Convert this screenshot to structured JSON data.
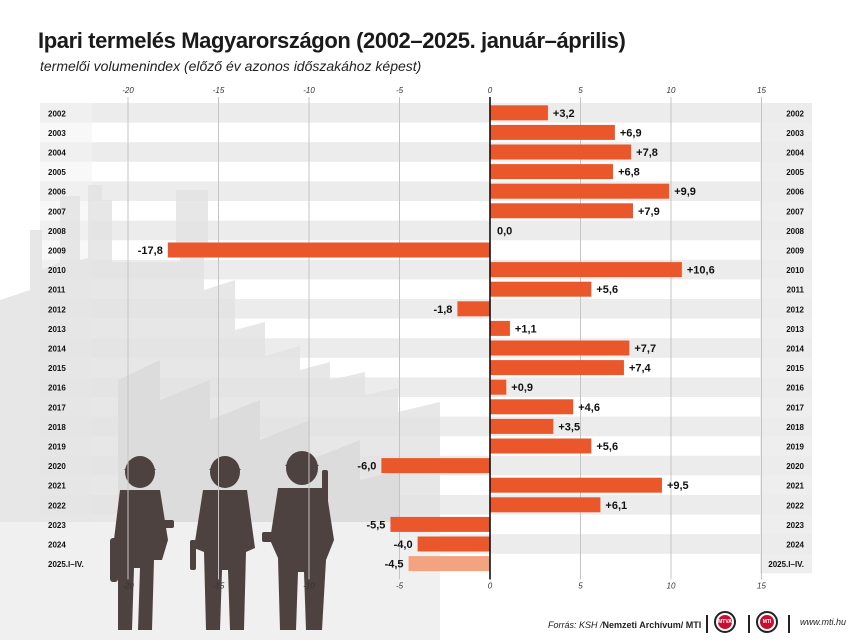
{
  "header": {
    "title": "Ipari termelés Magyarországon (2002–2025. január–április)",
    "subtitle": "termelői volumenindex (előző év azonos időszakához képest)"
  },
  "chart_data": {
    "type": "bar",
    "orientation": "horizontal",
    "title": "Ipari termelés Magyarországon (2002–2025. január–április)",
    "subtitle": "termelői volumenindex (előző év azonos időszakához képest)",
    "xlim": [
      -25,
      15
    ],
    "xticks": [
      -20,
      -15,
      -10,
      -5,
      0,
      5,
      10,
      15
    ],
    "grid": true,
    "categories": [
      "2002",
      "2003",
      "2004",
      "2005",
      "2006",
      "2007",
      "2008",
      "2009",
      "2010",
      "2011",
      "2012",
      "2013",
      "2014",
      "2015",
      "2016",
      "2017",
      "2018",
      "2019",
      "2020",
      "2021",
      "2022",
      "2023",
      "2024",
      "2025.I–IV."
    ],
    "values": [
      3.2,
      6.9,
      7.8,
      6.8,
      9.9,
      7.9,
      0.0,
      -17.8,
      10.6,
      5.6,
      -1.8,
      1.1,
      7.7,
      7.4,
      0.9,
      4.6,
      3.5,
      5.6,
      -6.0,
      9.5,
      6.1,
      -5.5,
      -4.0,
      -4.5
    ],
    "labels": [
      "+3,2",
      "+6,9",
      "+7,8",
      "+6,8",
      "+9,9",
      "+7,9",
      "0,0",
      "-17,8",
      "+10,6",
      "+5,6",
      "-1,8",
      "+1,1",
      "+7,7",
      "+7,4",
      "+0,9",
      "+4,6",
      "+3,5",
      "+5,6",
      "-6,0",
      "+9,5",
      "+6,1",
      "-5,5",
      "-4,0",
      "-4,5"
    ],
    "highlight_last": true
  },
  "colors": {
    "bar": "#e9572b",
    "bar_highlight": "#f3a37f",
    "row_band": "#ececec",
    "grid": "#c4c4c4",
    "zero_axis": "#111111",
    "silhouette_dark": "#4e4240",
    "silhouette_light": "#e2e2e2"
  },
  "footer": {
    "source_prefix": "Forrás: KSH / ",
    "archive": "Nemzeti Archívum",
    "mti": " / MTI",
    "logo1": "MTVA",
    "logo2": "MTI",
    "website": "www.mti.hu"
  }
}
